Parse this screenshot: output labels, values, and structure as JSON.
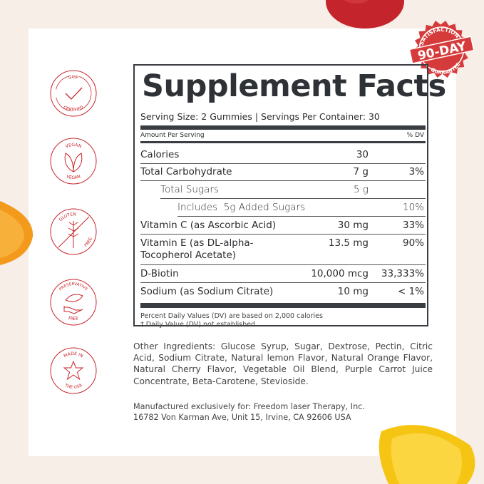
{
  "colors": {
    "background": "#f7eee8",
    "accent_red": "#c8252b",
    "text": "#2b2d30"
  },
  "badge": {
    "top": "SATISFACTION",
    "main": "90-DAY",
    "bottom": "GUARANTEE"
  },
  "icons": [
    {
      "name": "gmp-certified-icon",
      "top": "GMP",
      "bottom": "CERTIFIED"
    },
    {
      "name": "vegan-icon",
      "top": "VEGAN",
      "bottom": "VEGAN"
    },
    {
      "name": "gluten-free-icon",
      "top": "GLUTEN",
      "bottom": "FREE"
    },
    {
      "name": "preservative-free-icon",
      "top": "PRESERVATIVE",
      "bottom": "FREE"
    },
    {
      "name": "made-in-usa-icon",
      "top": "MADE IN",
      "bottom": "THE USA"
    }
  ],
  "facts": {
    "title": "Supplement Facts",
    "serving": "Serving Size: 2 Gummies | Servings Per Container: 30",
    "amount_header": "Amount Per Serving",
    "dv_header": "% DV",
    "rows": [
      {
        "name": "Calories",
        "amount": "30",
        "dv": ""
      },
      {
        "name": "Total Carbohydrate",
        "amount": "7 g",
        "dv": "3%"
      },
      {
        "name": "Total Sugars",
        "amount": "5 g",
        "dv": ""
      },
      {
        "name": "Includes  5g Added Sugars",
        "amount": "",
        "dv": "10%"
      },
      {
        "name": "Vitamin C (as Ascorbic Acid)",
        "amount": "30 mg",
        "dv": "33%"
      },
      {
        "name": "Vitamin E (as DL-alpha-",
        "name2": "Tocopherol Acetate)",
        "amount": "13.5 mg",
        "dv": "90%"
      },
      {
        "name": "D-Biotin",
        "amount": "10,000 mcg",
        "dv": "33,333%"
      },
      {
        "name": "Sodium (as Sodium Citrate)",
        "amount": "10 mg",
        "dv": "< 1%"
      }
    ],
    "footnote1": "Percent Daily Values (DV) are based on 2,000 calories",
    "footnote2": "†  Daily Value (DV) not established"
  },
  "ingredients": "Other Ingredients: Glucose Syrup, Sugar, Dextrose, Pectin, Citric Acid, Sodium Citrate, Natural lemon Flavor, Natural Orange Flavor, Natural Cherry Flavor, Vegetable Oil Blend, Purple Carrot Juice Concentrate, Beta-Carotene, Stevioside.",
  "manufacturer": {
    "line1": "Manufactured exclusively for: Freedom laser Therapy, Inc.",
    "line2": "16782 Von Karman Ave, Unit 15, Irvine, CA 92606 USA"
  }
}
